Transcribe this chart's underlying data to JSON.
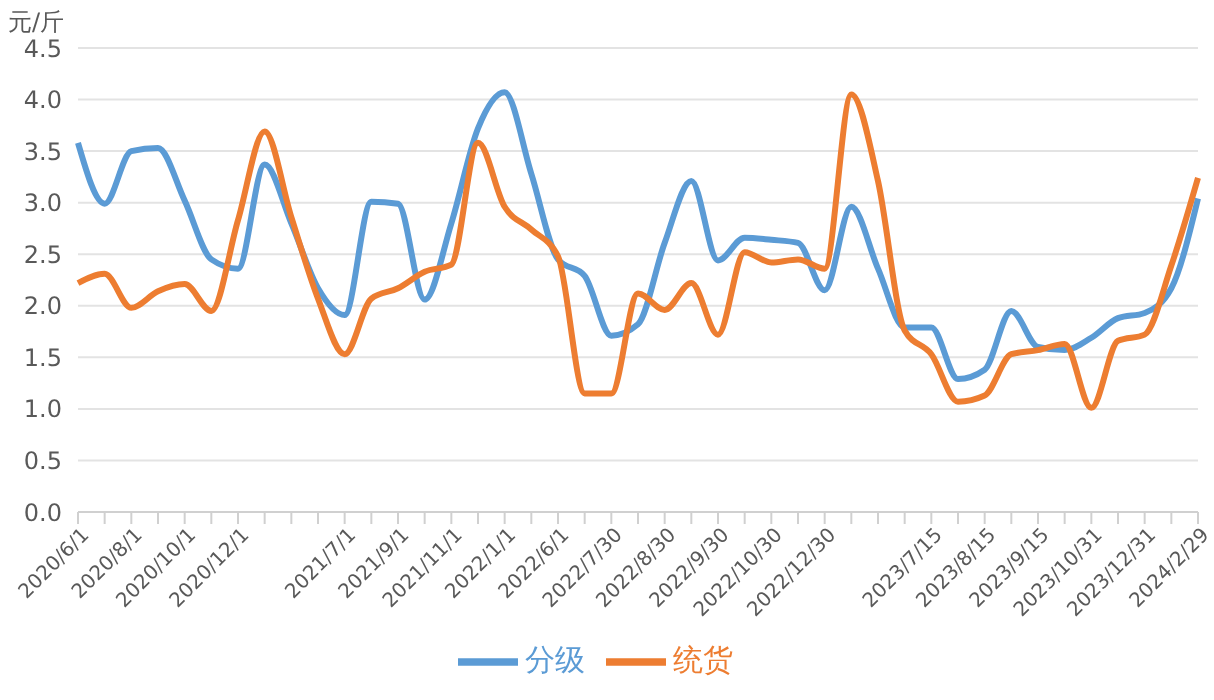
{
  "chart_data": {
    "type": "line",
    "ylabel": "元/斤",
    "categories": [
      "2020/6/1",
      null,
      "2020/8/1",
      null,
      "2020/10/1",
      null,
      "2020/12/1",
      null,
      null,
      null,
      "2021/7/1",
      null,
      "2021/9/1",
      null,
      "2021/11/1",
      null,
      "2022/1/1",
      null,
      "2022/6/1",
      null,
      "2022/7/30",
      null,
      "2022/8/30",
      null,
      "2022/9/30",
      null,
      "2022/10/30",
      null,
      "2022/12/30",
      null,
      null,
      null,
      "2023/7/15",
      null,
      "2023/8/15",
      null,
      "2023/9/15",
      null,
      "2023/10/31",
      null,
      "2023/12/31",
      null,
      "2024/2/29"
    ],
    "ylim": [
      0,
      4.5
    ],
    "yticks": [
      {
        "value": 0,
        "label": "0.0"
      },
      {
        "value": 0.5,
        "label": "0.5"
      },
      {
        "value": 1,
        "label": "1.0"
      },
      {
        "value": 1.5,
        "label": "1.5"
      },
      {
        "value": 2,
        "label": "2.0"
      },
      {
        "value": 2.5,
        "label": "2.5"
      },
      {
        "value": 3,
        "label": "3.0"
      },
      {
        "value": 3.5,
        "label": "3.5"
      },
      {
        "value": 4,
        "label": "4.0"
      },
      {
        "value": 4.5,
        "label": "4.5"
      }
    ],
    "grid": "y",
    "legend": "bottom",
    "line_style": "solid",
    "series": [
      {
        "name": "分级",
        "color": "#5b9bd5",
        "values": [
          3.58,
          2.99,
          3.5,
          3.53,
          3.02,
          2.45,
          2.36,
          3.37,
          2.8,
          2.17,
          1.91,
          3.01,
          2.99,
          2.06,
          2.8,
          3.72,
          4.07,
          3.28,
          2.45,
          2.29,
          1.71,
          1.82,
          2.61,
          3.21,
          2.44,
          2.66,
          2.64,
          2.61,
          2.15,
          2.96,
          2.36,
          1.79,
          1.79,
          1.29,
          1.38,
          1.95,
          1.6,
          1.57,
          1.69,
          1.88,
          1.93,
          2.17,
          3.04
        ]
      },
      {
        "name": "统货",
        "color": "#ed7d31",
        "values": [
          2.22,
          2.31,
          1.98,
          2.14,
          2.21,
          1.95,
          2.83,
          3.69,
          2.86,
          2.07,
          1.53,
          2.07,
          2.17,
          2.33,
          2.4,
          3.58,
          2.96,
          2.74,
          2.48,
          1.15,
          1.15,
          2.12,
          1.96,
          2.22,
          1.72,
          2.52,
          2.42,
          2.45,
          2.36,
          4.05,
          3.21,
          1.76,
          1.53,
          1.07,
          1.13,
          1.53,
          1.57,
          1.63,
          1.01,
          1.66,
          1.72,
          2.39,
          3.24
        ]
      }
    ]
  }
}
